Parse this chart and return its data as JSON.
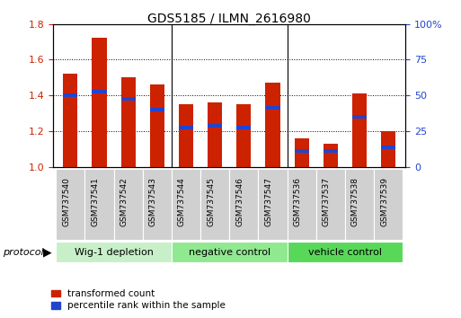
{
  "title": "GDS5185 / ILMN_2616980",
  "samples": [
    "GSM737540",
    "GSM737541",
    "GSM737542",
    "GSM737543",
    "GSM737544",
    "GSM737545",
    "GSM737546",
    "GSM737547",
    "GSM737536",
    "GSM737537",
    "GSM737538",
    "GSM737539"
  ],
  "red_values": [
    1.52,
    1.72,
    1.5,
    1.46,
    1.35,
    1.36,
    1.35,
    1.47,
    1.16,
    1.13,
    1.41,
    1.2
  ],
  "blue_values": [
    1.4,
    1.42,
    1.38,
    1.32,
    1.22,
    1.23,
    1.22,
    1.33,
    1.09,
    1.09,
    1.28,
    1.11
  ],
  "groups": [
    {
      "label": "Wig-1 depletion",
      "start": 0,
      "end": 4,
      "color": "#c8f0c8"
    },
    {
      "label": "negative control",
      "start": 4,
      "end": 8,
      "color": "#90e890"
    },
    {
      "label": "vehicle control",
      "start": 8,
      "end": 12,
      "color": "#58d858"
    }
  ],
  "ylim_left": [
    1.0,
    1.8
  ],
  "ylim_right": [
    0,
    100
  ],
  "yticks_left": [
    1.0,
    1.2,
    1.4,
    1.6,
    1.8
  ],
  "yticks_right": [
    0,
    25,
    50,
    75,
    100
  ],
  "yticklabels_right": [
    "0",
    "25",
    "50",
    "75",
    "100%"
  ],
  "bar_color_red": "#cc2200",
  "bar_color_blue": "#2244cc",
  "bar_width": 0.5,
  "bar_base": 1.0,
  "protocol_label": "protocol",
  "legend_red": "transformed count",
  "legend_blue": "percentile rank within the sample",
  "left_tick_color": "#cc2200",
  "right_tick_color": "#2244cc",
  "tick_label_size": 8,
  "title_fontsize": 10,
  "sample_label_fontsize": 6.5,
  "group_label_fontsize": 8,
  "legend_fontsize": 7.5
}
